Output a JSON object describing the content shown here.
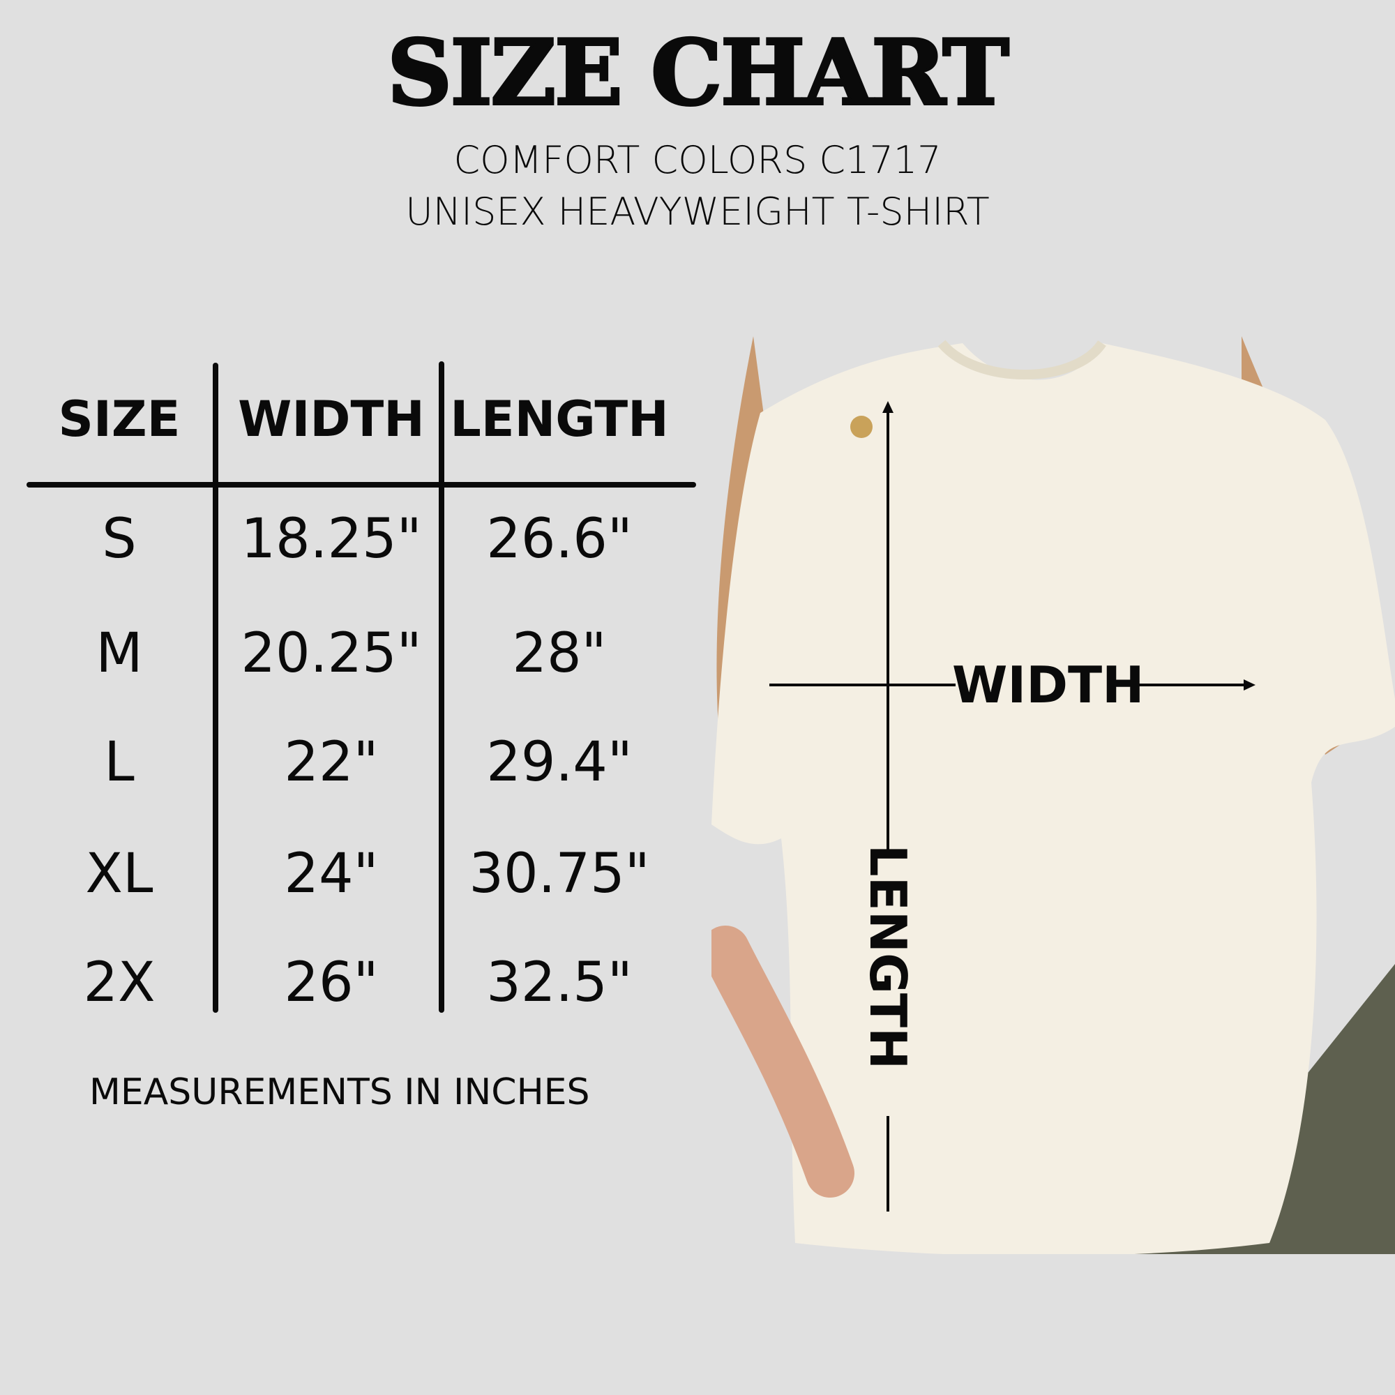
{
  "title": "SIZE CHART",
  "subtitle_line1": "COMFORT COLORS C1717",
  "subtitle_line2": "UNISEX HEAVYWEIGHT T-SHIRT",
  "table": {
    "headers": [
      "SIZE",
      "WIDTH",
      "LENGTH"
    ],
    "rows": [
      [
        "S",
        "18.25\"",
        "26.6\""
      ],
      [
        "M",
        "20.25\"",
        "28\""
      ],
      [
        "L",
        "22\"",
        "29.4\""
      ],
      [
        "XL",
        "24\"",
        "30.75\""
      ],
      [
        "2X",
        "26\"",
        "32.5\""
      ]
    ]
  },
  "note": "MEASUREMENTS IN INCHES",
  "diagram": {
    "width_label": "WIDTH",
    "length_label": "LENGTH"
  },
  "colors": {
    "background": "#e0e0e0",
    "text": "#0a0a0a",
    "shirt": "#f4efe3"
  }
}
